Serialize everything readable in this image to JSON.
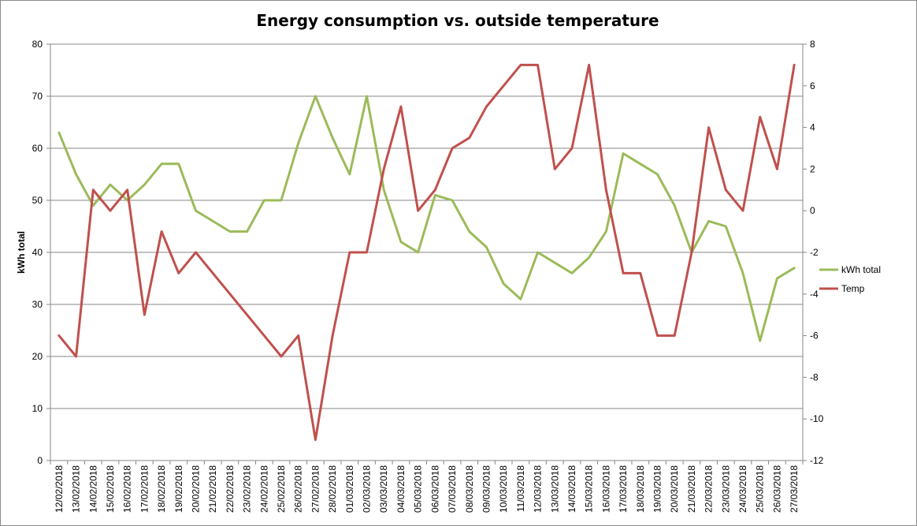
{
  "chart_data": {
    "type": "line",
    "title": "Energy consumption vs. outside temperature",
    "ylabel": "kWh total",
    "y2label": "",
    "xlabel": "",
    "ylim": [
      0,
      80
    ],
    "y2lim": [
      -12,
      8
    ],
    "y_ticks": [
      "0",
      "10",
      "20",
      "30",
      "40",
      "50",
      "60",
      "70",
      "80"
    ],
    "y2_ticks": [
      "-12",
      "-10",
      "-8",
      "-6",
      "-4",
      "-2",
      "0",
      "2",
      "4",
      "6",
      "8"
    ],
    "grid": true,
    "legend_position": "right",
    "categories": [
      "12/02/2018",
      "13/02/2018",
      "14/02/2018",
      "15/02/2018",
      "16/02/2018",
      "17/02/2018",
      "18/02/2018",
      "19/02/2018",
      "20/02/2018",
      "21/02/2018",
      "22/02/2018",
      "23/02/2018",
      "24/02/2018",
      "25/02/2018",
      "26/02/2018",
      "27/02/2018",
      "28/02/2018",
      "01/03/2018",
      "02/03/2018",
      "03/03/2018",
      "04/03/2018",
      "05/03/2018",
      "06/03/2018",
      "07/03/2018",
      "08/03/2018",
      "09/03/2018",
      "10/03/2018",
      "11/03/2018",
      "12/03/2018",
      "13/03/2018",
      "14/03/2018",
      "15/03/2018",
      "16/03/2018",
      "17/03/2018",
      "18/03/2018",
      "19/03/2018",
      "20/03/2018",
      "21/03/2018",
      "22/03/2018",
      "23/03/2018",
      "24/03/2018",
      "25/03/2018",
      "26/03/2018",
      "27/03/2018"
    ],
    "series": [
      {
        "name": "kWh total",
        "axis": "left",
        "color": "#9bbb59",
        "values": [
          63,
          55,
          49,
          53,
          50,
          53,
          57,
          57,
          48,
          46,
          44,
          44,
          50,
          50,
          61,
          70,
          62,
          55,
          70,
          52,
          42,
          40,
          51,
          50,
          44,
          41,
          34,
          31,
          40,
          38,
          36,
          39,
          44,
          59,
          57,
          55,
          49,
          40,
          46,
          45,
          36,
          23,
          35,
          37
        ]
      },
      {
        "name": "Temp",
        "axis": "right",
        "color": "#c0504d",
        "values": [
          -6,
          -7,
          1,
          0,
          1,
          -5,
          -1,
          -3,
          -2,
          -3,
          -4,
          -5,
          -6,
          -7,
          -6,
          -11,
          -6,
          -2,
          -2,
          2,
          5,
          0,
          1,
          3,
          3.5,
          5,
          6,
          7,
          7,
          2,
          3,
          7,
          1,
          -3,
          -3,
          -6,
          -6,
          -2,
          4,
          1,
          0,
          4.5,
          2,
          7
        ]
      }
    ]
  }
}
